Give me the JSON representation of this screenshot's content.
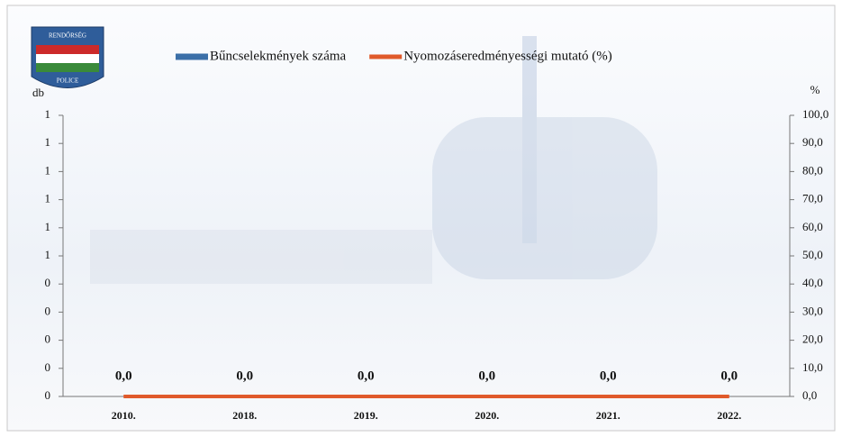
{
  "logo": {
    "top": "RENDŐRSÉG",
    "bottom": "POLICE"
  },
  "chart_data": {
    "type": "bar-line",
    "y_label": "db",
    "y2_label": "%",
    "categories": [
      "2010.",
      "2018.",
      "2019.",
      "2020.",
      "2021.",
      "2022."
    ],
    "series": [
      {
        "name": "Bűncselekmények száma",
        "color": "#3b6fa8",
        "type": "bar",
        "values": [
          0,
          0,
          0,
          0,
          0,
          0
        ]
      },
      {
        "name": "Nyomozáseredményességi mutató (%)",
        "color": "#e05a2b",
        "type": "line",
        "axis": "y2",
        "values": [
          0,
          0,
          0,
          0,
          0,
          0
        ],
        "value_labels": [
          "0,0",
          "0,0",
          "0,0",
          "0,0",
          "0,0",
          "0,0"
        ]
      }
    ],
    "ylim": [
      0,
      1
    ],
    "yticks": [
      0,
      {
        "value": 0.1,
        "label": "0"
      },
      {
        "value": 0.2,
        "label": "0"
      },
      {
        "value": 0.3,
        "label": "0"
      },
      {
        "value": 0.4,
        "label": "0"
      },
      {
        "value": 0.5,
        "label": "1"
      },
      {
        "value": 0.6,
        "label": "1"
      },
      {
        "value": 0.7,
        "label": "1"
      },
      {
        "value": 0.8,
        "label": "1"
      },
      {
        "value": 0.9,
        "label": "1"
      },
      1
    ],
    "y2lim": [
      0,
      100
    ],
    "y2ticks": [
      {
        "value": 0,
        "label": "0,0"
      },
      {
        "value": 10,
        "label": "10,0"
      },
      {
        "value": 20,
        "label": "20,0"
      },
      {
        "value": 30,
        "label": "30,0"
      },
      {
        "value": 40,
        "label": "40,0"
      },
      {
        "value": 50,
        "label": "50,0"
      },
      {
        "value": 60,
        "label": "60,0"
      },
      {
        "value": 70,
        "label": "70,0"
      },
      {
        "value": 80,
        "label": "80,0"
      },
      {
        "value": 90,
        "label": "90,0"
      },
      {
        "value": 100,
        "label": "100,0"
      }
    ]
  }
}
